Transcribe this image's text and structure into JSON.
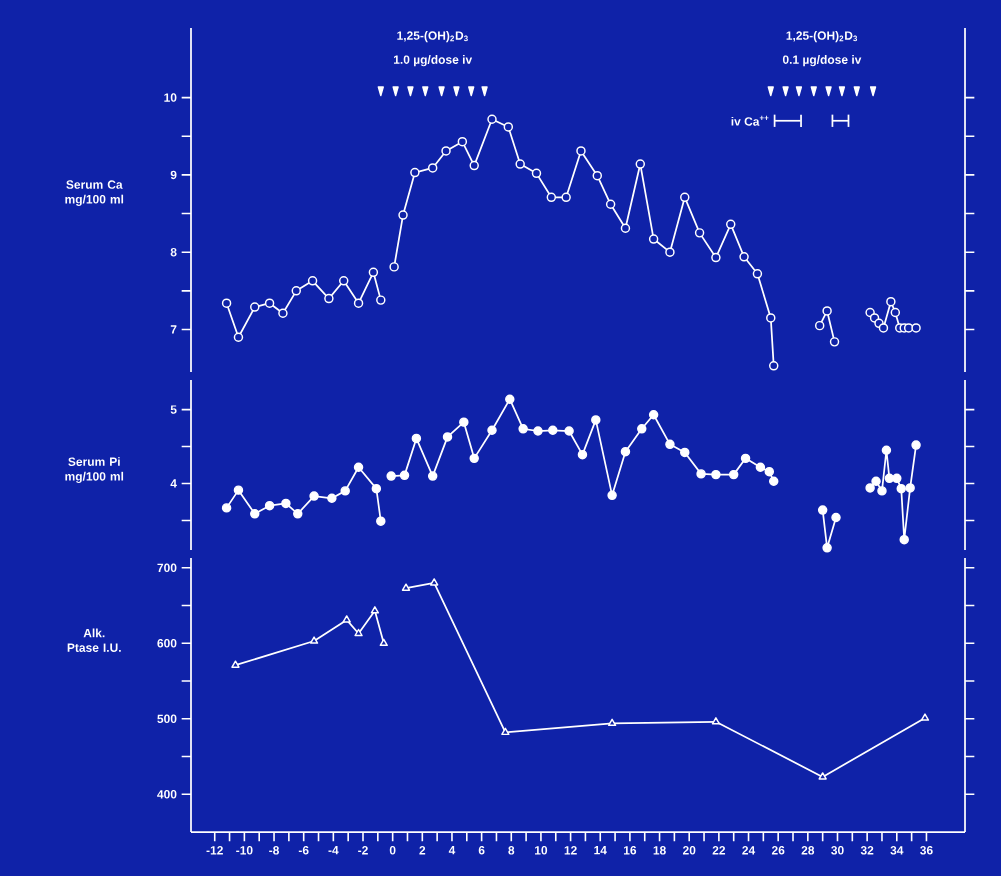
{
  "chart_data": [
    {
      "type": "line",
      "ylabel": "Serum Ca mg/100 ml",
      "marker": "circle",
      "tick_labels": "y",
      "xlim": [
        -13.6,
        38.6
      ],
      "ylim": [
        6.45,
        10.9
      ],
      "yticks": [
        7,
        {
          "value": 7.5,
          "label": null
        },
        8,
        {
          "value": 8.5,
          "label": null
        },
        9,
        {
          "value": 9.5,
          "label": null
        },
        10
      ],
      "series": [
        {
          "color": "#ffffff",
          "x": [
            -11.2,
            -10.4,
            -9.3,
            -8.3,
            -7.4,
            -6.5,
            -5.4,
            -4.3,
            -3.3,
            -2.3,
            -1.3,
            -0.8
          ],
          "values": [
            7.34,
            6.9,
            7.29,
            7.34,
            7.21,
            7.5,
            7.63,
            7.4,
            7.63,
            7.34,
            7.74,
            7.38
          ]
        },
        {
          "color": "#ffffff",
          "x": [
            0.1,
            0.7,
            1.5,
            2.7,
            3.6,
            4.7,
            5.5,
            6.7,
            7.8,
            8.6,
            9.7,
            10.7,
            11.7,
            12.7,
            13.8,
            14.7,
            15.7,
            16.7,
            17.6,
            18.7,
            19.7,
            20.7,
            21.8,
            22.8,
            23.7,
            24.6,
            25.5,
            25.7
          ],
          "values": [
            7.81,
            8.48,
            9.03,
            9.09,
            9.31,
            9.43,
            9.12,
            9.72,
            9.62,
            9.14,
            9.02,
            8.71,
            8.71,
            9.31,
            8.99,
            8.62,
            8.31,
            9.14,
            8.17,
            8.0,
            8.71,
            8.25,
            7.93,
            8.36,
            7.94,
            7.72,
            7.15,
            6.53
          ]
        },
        {
          "color": "#ffffff",
          "x": [
            28.8,
            29.3,
            29.8
          ],
          "values": [
            7.05,
            7.24,
            6.84
          ]
        },
        {
          "color": "#ffffff",
          "x": [
            32.2,
            32.5,
            32.8,
            33.1,
            33.6,
            33.9,
            34.2,
            34.5,
            34.8,
            35.3
          ],
          "values": [
            7.22,
            7.15,
            7.08,
            7.02,
            7.36,
            7.22,
            7.02,
            7.02,
            7.02,
            7.02
          ]
        },
        {
          "type": "scatter",
          "marker": "triangle",
          "color": "#ffffff",
          "x": [
            -0.8,
            0.2,
            1.2,
            2.2,
            3.3,
            4.3,
            5.3,
            6.2
          ],
          "values": [
            10.1,
            10.1,
            10.1,
            10.1,
            10.1,
            10.1,
            10.1,
            10.1
          ]
        },
        {
          "type": "scatter",
          "marker": "triangle",
          "color": "#ffffff",
          "x": [
            25.5,
            26.5,
            27.4,
            28.4,
            29.4,
            30.3,
            31.3,
            32.4
          ],
          "values": [
            10.1,
            10.1,
            10.1,
            10.1,
            10.1,
            10.1,
            10.1,
            10.1
          ]
        },
        {
          "name": "iv Ca$^{++}$",
          "marker": "none",
          "color": "#ffffff",
          "x": [
            25.7,
            27.6
          ],
          "values": [
            9.7,
            9.7
          ]
        },
        {
          "marker": "none",
          "color": "#ffffff",
          "x": [
            29.6,
            30.8
          ],
          "values": [
            9.7,
            9.7
          ]
        }
      ],
      "annotations": [
        "1,25-(OH)$_{2}$D$_{3}$",
        "1.0 µg/dose iv",
        "1,25-(OH)$_{2}$D$_{3}$",
        "0.1 µg/dose iv"
      ]
    },
    {
      "type": "line",
      "ylabel": "Serum Pi mg/100 ml",
      "marker": "circle",
      "tick_labels": "y",
      "xlim": [
        -13.6,
        38.6
      ],
      "ylim": [
        3.1,
        5.4
      ],
      "yticks": [
        {
          "value": 3.5,
          "label": null
        },
        4,
        {
          "value": 4.5,
          "label": null
        },
        5
      ],
      "series": [
        {
          "color": "#ffffff",
          "x": [
            -11.2,
            -10.4,
            -9.3,
            -8.3,
            -7.2,
            -6.4,
            -5.3,
            -4.1,
            -3.2,
            -2.3,
            -1.1,
            -0.8
          ],
          "values": [
            3.67,
            3.91,
            3.59,
            3.7,
            3.73,
            3.59,
            3.83,
            3.8,
            3.9,
            4.22,
            3.93,
            3.49
          ]
        },
        {
          "color": "#ffffff",
          "x": [
            -0.1,
            0.8,
            1.6,
            2.7,
            3.7,
            4.8,
            5.5,
            6.7,
            7.9,
            8.8,
            9.8,
            10.8,
            11.9,
            12.8,
            13.7,
            14.8,
            15.7,
            16.8,
            17.6,
            18.7,
            19.7,
            20.8,
            21.8,
            23.0,
            23.8,
            24.8,
            25.4,
            25.7
          ],
          "values": [
            4.1,
            4.11,
            4.61,
            4.1,
            4.63,
            4.83,
            4.34,
            4.72,
            5.14,
            4.74,
            4.71,
            4.72,
            4.71,
            4.39,
            4.86,
            3.84,
            4.43,
            4.74,
            4.93,
            4.53,
            4.42,
            4.13,
            4.12,
            4.12,
            4.34,
            4.22,
            4.16,
            4.03
          ]
        },
        {
          "color": "#ffffff",
          "x": [
            29.0,
            29.3,
            29.9
          ],
          "values": [
            3.64,
            3.13,
            3.54
          ]
        },
        {
          "color": "#ffffff",
          "x": [
            32.2,
            32.6,
            33.0,
            33.3,
            33.5,
            34.0,
            34.3,
            34.5,
            34.9,
            35.3
          ],
          "values": [
            3.94,
            4.03,
            3.9,
            4.45,
            4.07,
            4.07,
            3.93,
            3.24,
            3.94,
            4.52
          ]
        }
      ]
    },
    {
      "type": "line",
      "ylabel": "Alk. Ptase I.U.",
      "marker": "triangle",
      "xlim": [
        -13.6,
        38.6
      ],
      "ylim": [
        350,
        713
      ],
      "yticks": [
        400,
        {
          "value": 450,
          "label": null
        },
        500,
        {
          "value": 550,
          "label": null
        },
        600,
        {
          "value": 650,
          "label": null
        },
        700
      ],
      "xticks": [
        -12,
        {
          "value": -11,
          "label": null
        },
        -10,
        {
          "value": -9,
          "label": null
        },
        -8,
        {
          "value": -7,
          "label": null
        },
        -6,
        {
          "value": -5,
          "label": null
        },
        -4,
        {
          "value": -3,
          "label": null
        },
        -2,
        {
          "value": -1,
          "label": null
        },
        0,
        {
          "value": 1,
          "label": null
        },
        2,
        {
          "value": 3,
          "label": null
        },
        4,
        {
          "value": 5,
          "label": null
        },
        6,
        {
          "value": 7,
          "label": null
        },
        8,
        {
          "value": 9,
          "label": null
        },
        10,
        {
          "value": 11,
          "label": null
        },
        12,
        {
          "value": 13,
          "label": null
        },
        14,
        {
          "value": 15,
          "label": null
        },
        16,
        {
          "value": 17,
          "label": null
        },
        18,
        {
          "value": 19,
          "label": null
        },
        20,
        {
          "value": 21,
          "label": null
        },
        22,
        {
          "value": 23,
          "label": null
        },
        24,
        {
          "value": 25,
          "label": null
        },
        26,
        {
          "value": 27,
          "label": null
        },
        28,
        {
          "value": 29,
          "label": null
        },
        30,
        {
          "value": 31,
          "label": null
        },
        32,
        {
          "value": 33,
          "label": null
        },
        34,
        {
          "value": 35,
          "label": null
        },
        36
      ],
      "series": [
        {
          "color": "#ffffff",
          "x": [
            -10.6,
            -5.3,
            -3.1,
            -2.3,
            -1.2,
            -0.6
          ],
          "values": [
            571,
            603,
            631,
            613,
            643,
            600
          ]
        },
        {
          "color": "#ffffff",
          "x": [
            0.9,
            2.8,
            7.6,
            14.8,
            21.8,
            29.0,
            35.9
          ],
          "values": [
            673,
            680,
            482,
            494,
            496,
            423,
            501
          ]
        }
      ]
    }
  ]
}
